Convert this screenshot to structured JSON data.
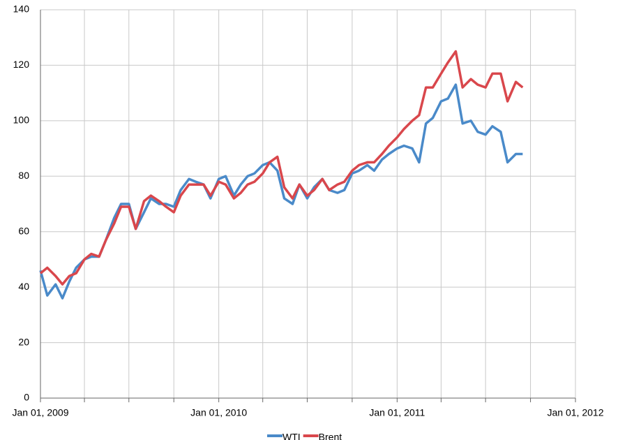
{
  "chart_data": {
    "type": "line",
    "x": [
      "2009-01-01",
      "2009-01-15",
      "2009-02-01",
      "2009-02-15",
      "2009-03-01",
      "2009-03-15",
      "2009-04-01",
      "2009-04-15",
      "2009-05-01",
      "2009-05-15",
      "2009-06-01",
      "2009-06-15",
      "2009-07-01",
      "2009-07-15",
      "2009-08-01",
      "2009-08-15",
      "2009-09-01",
      "2009-09-15",
      "2009-10-01",
      "2009-10-15",
      "2009-11-01",
      "2009-11-15",
      "2009-12-01",
      "2009-12-15",
      "2010-01-01",
      "2010-01-15",
      "2010-02-01",
      "2010-02-15",
      "2010-03-01",
      "2010-03-15",
      "2010-04-01",
      "2010-04-15",
      "2010-05-01",
      "2010-05-15",
      "2010-06-01",
      "2010-06-15",
      "2010-07-01",
      "2010-07-15",
      "2010-08-01",
      "2010-08-15",
      "2010-09-01",
      "2010-09-15",
      "2010-10-01",
      "2010-10-15",
      "2010-11-01",
      "2010-11-15",
      "2010-12-01",
      "2010-12-15",
      "2011-01-01",
      "2011-01-15",
      "2011-02-01",
      "2011-02-15",
      "2011-03-01",
      "2011-03-15",
      "2011-04-01",
      "2011-04-15",
      "2011-05-01",
      "2011-05-15",
      "2011-06-01",
      "2011-06-15",
      "2011-07-01",
      "2011-07-15",
      "2011-08-01",
      "2011-08-15",
      "2011-09-01",
      "2011-09-15"
    ],
    "series": [
      {
        "name": "WTI",
        "color": "#4a8ac9",
        "values": [
          46,
          37,
          41,
          36,
          42,
          47,
          50,
          51,
          51,
          57,
          65,
          70,
          70,
          61,
          67,
          72,
          70,
          70,
          69,
          75,
          79,
          78,
          77,
          72,
          79,
          80,
          73,
          77,
          80,
          81,
          84,
          85,
          82,
          72,
          70,
          77,
          72,
          76,
          79,
          75,
          74,
          75,
          81,
          82,
          84,
          82,
          86,
          88,
          90,
          91,
          90,
          85,
          99,
          101,
          107,
          108,
          113,
          99,
          100,
          96,
          95,
          98,
          96,
          85,
          88,
          88
        ]
      },
      {
        "name": "Brent",
        "color": "#d9474c",
        "values": [
          45,
          47,
          44,
          41,
          44,
          45,
          50,
          52,
          51,
          57,
          63,
          69,
          69,
          61,
          71,
          73,
          71,
          69,
          67,
          73,
          77,
          77,
          77,
          73,
          78,
          77,
          72,
          74,
          77,
          78,
          81,
          85,
          87,
          76,
          72,
          77,
          73,
          75,
          79,
          75,
          77,
          78,
          82,
          84,
          85,
          85,
          88,
          91,
          94,
          97,
          100,
          102,
          112,
          112,
          117,
          121,
          125,
          112,
          115,
          113,
          112,
          117,
          117,
          107,
          114,
          112
        ]
      }
    ],
    "xlim": [
      "2009-01-01",
      "2012-01-01"
    ],
    "xticks": [
      {
        "value": "2009-01-01",
        "label": "Jan 01, 2009"
      },
      {
        "value": "2009-04-01",
        "label": null
      },
      {
        "value": "2009-07-01",
        "label": null
      },
      {
        "value": "2009-10-01",
        "label": null
      },
      {
        "value": "2010-01-01",
        "label": "Jan 01, 2010"
      },
      {
        "value": "2010-04-01",
        "label": null
      },
      {
        "value": "2010-07-01",
        "label": null
      },
      {
        "value": "2010-10-01",
        "label": null
      },
      {
        "value": "2011-01-01",
        "label": "Jan 01, 2011"
      },
      {
        "value": "2011-04-01",
        "label": null
      },
      {
        "value": "2011-07-01",
        "label": null
      },
      {
        "value": "2011-10-01",
        "label": null
      },
      {
        "value": "2012-01-01",
        "label": "Jan 01, 2012"
      }
    ],
    "ylim": [
      0,
      140
    ],
    "yticks": [
      0,
      20,
      40,
      60,
      80,
      100,
      120,
      140
    ],
    "grid": true,
    "legend": "bottom"
  }
}
